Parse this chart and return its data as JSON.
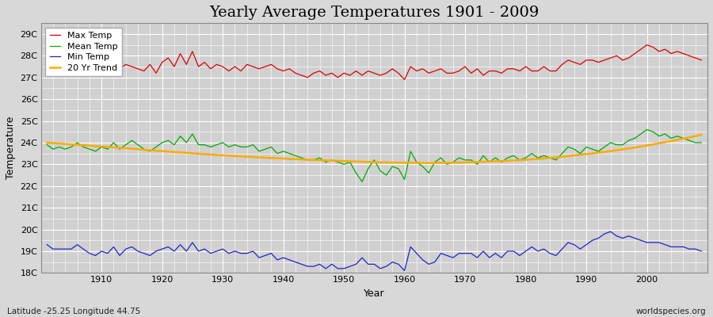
{
  "title": "Yearly Average Temperatures 1901 - 2009",
  "xlabel": "Year",
  "ylabel": "Temperature",
  "footnote_left": "Latitude -25.25 Longitude 44.75",
  "footnote_right": "worldspecies.org",
  "years": [
    1901,
    1902,
    1903,
    1904,
    1905,
    1906,
    1907,
    1908,
    1909,
    1910,
    1911,
    1912,
    1913,
    1914,
    1915,
    1916,
    1917,
    1918,
    1919,
    1920,
    1921,
    1922,
    1923,
    1924,
    1925,
    1926,
    1927,
    1928,
    1929,
    1930,
    1931,
    1932,
    1933,
    1934,
    1935,
    1936,
    1937,
    1938,
    1939,
    1940,
    1941,
    1942,
    1943,
    1944,
    1945,
    1946,
    1947,
    1948,
    1949,
    1950,
    1951,
    1952,
    1953,
    1954,
    1955,
    1956,
    1957,
    1958,
    1959,
    1960,
    1961,
    1962,
    1963,
    1964,
    1965,
    1966,
    1967,
    1968,
    1969,
    1970,
    1971,
    1972,
    1973,
    1974,
    1975,
    1976,
    1977,
    1978,
    1979,
    1980,
    1981,
    1982,
    1983,
    1984,
    1985,
    1986,
    1987,
    1988,
    1989,
    1990,
    1991,
    1992,
    1993,
    1994,
    1995,
    1996,
    1997,
    1998,
    1999,
    2000,
    2001,
    2002,
    2003,
    2004,
    2005,
    2006,
    2007,
    2008,
    2009
  ],
  "max_temp": [
    27.6,
    27.4,
    27.5,
    27.3,
    27.4,
    27.5,
    27.3,
    27.6,
    27.4,
    27.2,
    27.5,
    27.7,
    27.4,
    27.6,
    27.5,
    27.4,
    27.3,
    27.6,
    27.2,
    27.7,
    27.9,
    27.5,
    28.1,
    27.6,
    28.2,
    27.5,
    27.7,
    27.4,
    27.6,
    27.5,
    27.3,
    27.5,
    27.3,
    27.6,
    27.5,
    27.4,
    27.5,
    27.6,
    27.4,
    27.3,
    27.4,
    27.2,
    27.1,
    27.0,
    27.2,
    27.3,
    27.1,
    27.2,
    27.0,
    27.2,
    27.1,
    27.3,
    27.1,
    27.3,
    27.2,
    27.1,
    27.2,
    27.4,
    27.2,
    26.9,
    27.5,
    27.3,
    27.4,
    27.2,
    27.3,
    27.4,
    27.2,
    27.2,
    27.3,
    27.5,
    27.2,
    27.4,
    27.1,
    27.3,
    27.3,
    27.2,
    27.4,
    27.4,
    27.3,
    27.5,
    27.3,
    27.3,
    27.5,
    27.3,
    27.3,
    27.6,
    27.8,
    27.7,
    27.6,
    27.8,
    27.8,
    27.7,
    27.8,
    27.9,
    28.0,
    27.8,
    27.9,
    28.1,
    28.3,
    28.5,
    28.4,
    28.2,
    28.3,
    28.1,
    28.2,
    28.1,
    28.0,
    27.9,
    27.8
  ],
  "mean_temp": [
    23.9,
    23.7,
    23.8,
    23.7,
    23.8,
    24.0,
    23.8,
    23.7,
    23.6,
    23.8,
    23.7,
    24.0,
    23.7,
    23.9,
    24.1,
    23.9,
    23.7,
    23.6,
    23.8,
    24.0,
    24.1,
    23.9,
    24.3,
    24.0,
    24.4,
    23.9,
    23.9,
    23.8,
    23.9,
    24.0,
    23.8,
    23.9,
    23.8,
    23.8,
    23.9,
    23.6,
    23.7,
    23.8,
    23.5,
    23.6,
    23.5,
    23.4,
    23.3,
    23.2,
    23.2,
    23.3,
    23.1,
    23.2,
    23.1,
    23.0,
    23.1,
    22.6,
    22.2,
    22.8,
    23.2,
    22.7,
    22.5,
    22.9,
    22.8,
    22.3,
    23.6,
    23.1,
    22.9,
    22.6,
    23.1,
    23.3,
    23.0,
    23.1,
    23.3,
    23.2,
    23.2,
    23.0,
    23.4,
    23.1,
    23.3,
    23.1,
    23.3,
    23.4,
    23.2,
    23.3,
    23.5,
    23.3,
    23.4,
    23.3,
    23.2,
    23.5,
    23.8,
    23.7,
    23.5,
    23.8,
    23.7,
    23.6,
    23.8,
    24.0,
    23.9,
    23.9,
    24.1,
    24.2,
    24.4,
    24.6,
    24.5,
    24.3,
    24.4,
    24.2,
    24.3,
    24.2,
    24.1,
    24.0,
    24.0
  ],
  "min_temp": [
    19.3,
    19.1,
    19.1,
    19.1,
    19.1,
    19.3,
    19.1,
    18.9,
    18.8,
    19.0,
    18.9,
    19.2,
    18.8,
    19.1,
    19.2,
    19.0,
    18.9,
    18.8,
    19.0,
    19.1,
    19.2,
    19.0,
    19.3,
    19.0,
    19.4,
    19.0,
    19.1,
    18.9,
    19.0,
    19.1,
    18.9,
    19.0,
    18.9,
    18.9,
    19.0,
    18.7,
    18.8,
    18.9,
    18.6,
    18.7,
    18.6,
    18.5,
    18.4,
    18.3,
    18.3,
    18.4,
    18.2,
    18.4,
    18.2,
    18.2,
    18.3,
    18.4,
    18.7,
    18.4,
    18.4,
    18.2,
    18.3,
    18.5,
    18.4,
    18.1,
    19.2,
    18.9,
    18.6,
    18.4,
    18.5,
    18.9,
    18.8,
    18.7,
    18.9,
    18.9,
    18.9,
    18.7,
    19.0,
    18.7,
    18.9,
    18.7,
    19.0,
    19.0,
    18.8,
    19.0,
    19.2,
    19.0,
    19.1,
    18.9,
    18.8,
    19.1,
    19.4,
    19.3,
    19.1,
    19.3,
    19.5,
    19.6,
    19.8,
    19.9,
    19.7,
    19.6,
    19.7,
    19.6,
    19.5,
    19.4,
    19.4,
    19.4,
    19.3,
    19.2,
    19.2,
    19.2,
    19.1,
    19.1,
    19.0
  ],
  "trend": [
    24.0,
    23.98,
    23.96,
    23.94,
    23.92,
    23.9,
    23.88,
    23.86,
    23.84,
    23.82,
    23.8,
    23.78,
    23.76,
    23.74,
    23.72,
    23.7,
    23.67,
    23.65,
    23.63,
    23.61,
    23.59,
    23.57,
    23.55,
    23.53,
    23.51,
    23.49,
    23.47,
    23.45,
    23.43,
    23.42,
    23.4,
    23.38,
    23.37,
    23.35,
    23.34,
    23.32,
    23.31,
    23.29,
    23.28,
    23.27,
    23.25,
    23.24,
    23.23,
    23.21,
    23.2,
    23.19,
    23.18,
    23.17,
    23.16,
    23.15,
    23.14,
    23.13,
    23.12,
    23.11,
    23.1,
    23.09,
    23.09,
    23.08,
    23.08,
    23.07,
    23.07,
    23.07,
    23.06,
    23.06,
    23.06,
    23.07,
    23.07,
    23.08,
    23.08,
    23.09,
    23.1,
    23.11,
    23.12,
    23.13,
    23.14,
    23.15,
    23.16,
    23.18,
    23.19,
    23.21,
    23.23,
    23.25,
    23.27,
    23.3,
    23.32,
    23.35,
    23.38,
    23.41,
    23.44,
    23.47,
    23.5,
    23.54,
    23.57,
    23.61,
    23.65,
    23.69,
    23.73,
    23.77,
    23.82,
    23.87,
    23.92,
    23.97,
    24.02,
    24.07,
    24.13,
    24.18,
    24.24,
    24.3,
    24.36
  ],
  "ylim": [
    18.0,
    29.5
  ],
  "yticks": [
    18,
    19,
    20,
    21,
    22,
    23,
    24,
    25,
    26,
    27,
    28,
    29
  ],
  "ytick_labels": [
    "18C",
    "19C",
    "20C",
    "21C",
    "22C",
    "23C",
    "24C",
    "25C",
    "26C",
    "27C",
    "28C",
    "29C"
  ],
  "xticks": [
    1910,
    1920,
    1930,
    1940,
    1950,
    1960,
    1970,
    1980,
    1990,
    2000
  ],
  "xlim": [
    1900,
    2010
  ],
  "bg_color": "#d8d8d8",
  "plot_bg_color": "#d0d0d0",
  "grid_color": "#ffffff",
  "max_color": "#dd0000",
  "mean_color": "#00aa00",
  "min_color": "#2222cc",
  "trend_color": "#ffaa00",
  "linewidth": 0.9,
  "trend_linewidth": 1.8,
  "title_fontsize": 14,
  "axis_fontsize": 9,
  "tick_fontsize": 8,
  "footnote_fontsize": 7.5
}
